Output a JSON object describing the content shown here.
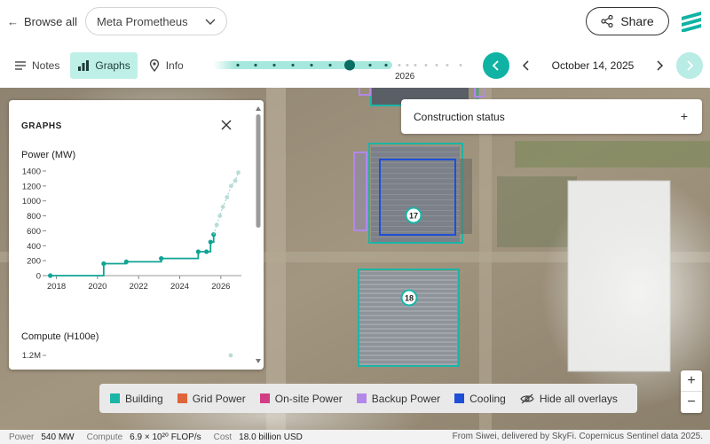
{
  "header": {
    "browse_label": "Browse all",
    "site_name": "Meta Prometheus",
    "share_label": "Share",
    "brand_color": "#10b3a3"
  },
  "tabs": [
    {
      "label": "Notes",
      "icon": "notes-icon"
    },
    {
      "label": "Graphs",
      "icon": "bar-chart-icon",
      "active": true
    },
    {
      "label": "Info",
      "icon": "location-pin-icon"
    }
  ],
  "timeline": {
    "year_label": "2026",
    "date_label": "October 14, 2025"
  },
  "construction": {
    "label": "Construction status",
    "expand_label": "+"
  },
  "graphs": {
    "title": "GRAPHS",
    "power_label": "Power (MW)",
    "compute_label": "Compute (H100e)"
  },
  "chart_data": [
    {
      "type": "line",
      "title": "Power (MW)",
      "y_ticks": [
        0,
        200,
        400,
        600,
        800,
        1000,
        1200,
        1400
      ],
      "x_ticks": [
        "2018",
        "2020",
        "2022",
        "2024",
        "2026"
      ],
      "ylim": [
        0,
        1400
      ],
      "xlim": [
        2017.5,
        2027
      ],
      "series": [
        {
          "values": [
            [
              2017.7,
              0
            ],
            [
              2020.3,
              0
            ],
            [
              2020.3,
              160
            ],
            [
              2021.4,
              185
            ],
            [
              2023.1,
              230
            ],
            [
              2024.9,
              320
            ],
            [
              2025.3,
              320
            ],
            [
              2025.5,
              450
            ],
            [
              2025.65,
              550
            ]
          ]
        },
        {
          "projected": true,
          "values": [
            [
              2025.8,
              680
            ],
            [
              2025.95,
              800
            ],
            [
              2026.1,
              920
            ],
            [
              2026.3,
              1050
            ],
            [
              2026.5,
              1200
            ],
            [
              2026.7,
              1270
            ],
            [
              2026.85,
              1380
            ]
          ]
        }
      ],
      "grid": false
    },
    {
      "type": "line",
      "title": "Compute (H100e)",
      "y_ticks": [
        "1.2M"
      ],
      "series": []
    }
  ],
  "legend": {
    "items": [
      {
        "label": "Building",
        "color": "#1bb5a6"
      },
      {
        "label": "Grid Power",
        "color": "#e0643a"
      },
      {
        "label": "On-site Power",
        "color": "#d13e86"
      },
      {
        "label": "Backup Power",
        "color": "#b388e8"
      },
      {
        "label": "Cooling",
        "color": "#1f4fd6"
      }
    ],
    "hide_label": "Hide all overlays"
  },
  "map": {
    "markers": [
      "17",
      "18"
    ]
  },
  "zoom": {
    "in": "+",
    "out": "−"
  },
  "footer": {
    "power_key": "Power",
    "power_value": "540 MW",
    "compute_key": "Compute",
    "compute_value": "6.9 × 10²⁰ FLOP/s",
    "cost_key": "Cost",
    "cost_value": "18.0 billion USD",
    "credit": "From Siwei, delivered by SkyFi. Copernicus Sentinel data 2025."
  }
}
